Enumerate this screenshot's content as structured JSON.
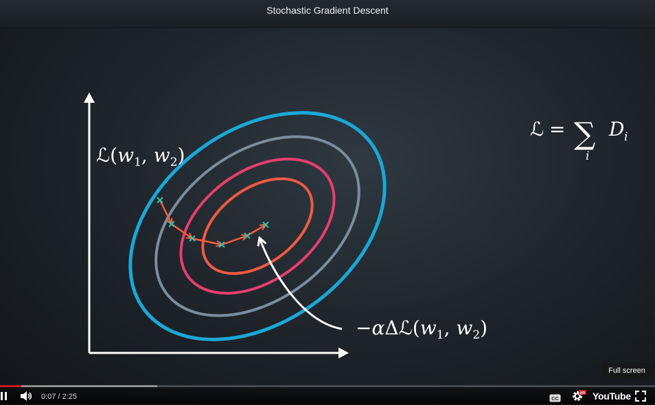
{
  "player": {
    "title": "Stochastic Gradient Descent",
    "current_time": "0:07",
    "time_separator": " / ",
    "duration": "2:25",
    "progress": 0.033,
    "buffered": 0.24,
    "tooltip": "Full screen",
    "brand": "YouTube",
    "hd_badge": "HD",
    "cc_label": "CC"
  },
  "scene": {
    "y_axis_label": {
      "loss": "ℒ",
      "open": "(",
      "w1": "w",
      "sub1": "1",
      "comma": ", ",
      "w2": "w",
      "sub2": "2",
      "close": ")"
    },
    "sum_formula": {
      "loss": "ℒ",
      "equals": "=",
      "sigma": "∑",
      "index": "i",
      "term": "D",
      "term_sub": "i"
    },
    "gradient_label": {
      "minus": "−",
      "alpha": "α",
      "delta": "Δ",
      "loss": "ℒ",
      "open": "(",
      "w1": "w",
      "sub1": "1",
      "comma": ", ",
      "w2": "w",
      "sub2": "2",
      "close": ")"
    },
    "contour_colors": [
      "#1aa8d6",
      "#7c8d9e",
      "#e83e6f",
      "#f05a44"
    ],
    "path_color": "#ff5c3d",
    "marker_color": "#2ec4a8"
  }
}
